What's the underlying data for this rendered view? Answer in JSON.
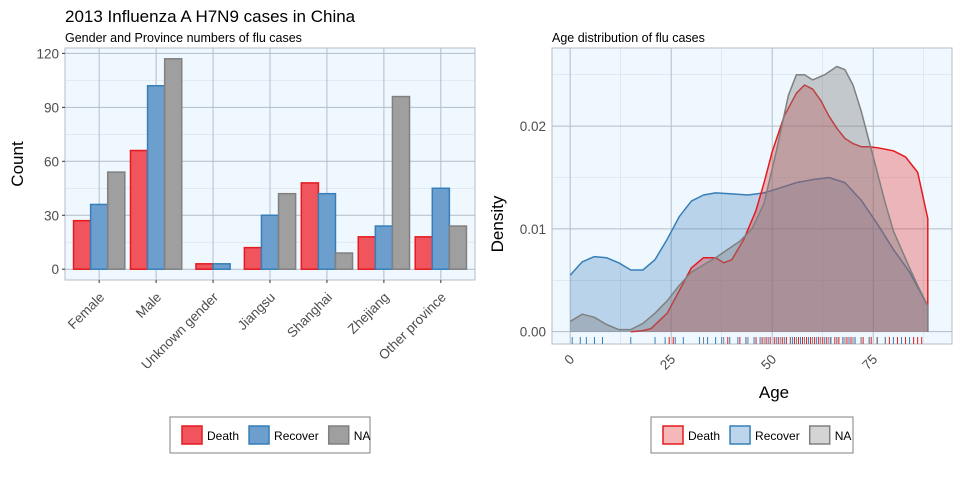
{
  "title": "2013 Influenza A H7N9 cases in China",
  "chart_data": [
    {
      "type": "bar",
      "subtitle": "Gender and Province numbers of flu cases",
      "xlabel": "",
      "ylabel": "Count",
      "ylim": [
        -6,
        123
      ],
      "yticks": [
        0,
        30,
        60,
        90,
        120
      ],
      "categories": [
        "Female",
        "Male",
        "Unknown gender",
        "Jiangsu",
        "Shanghai",
        "Zhejiang",
        "Other province"
      ],
      "series": [
        {
          "name": "Death",
          "values": [
            27,
            66,
            3,
            12,
            48,
            18,
            18
          ]
        },
        {
          "name": "Recover",
          "values": [
            36,
            102,
            3,
            30,
            42,
            24,
            45
          ]
        },
        {
          "name": "NA",
          "values": [
            54,
            117,
            null,
            42,
            9,
            96,
            24
          ]
        }
      ],
      "grid": true,
      "legend": "bottom",
      "colors": {
        "Death": "#f0545c",
        "Recover": "#6c9fce",
        "NA": "#9f9f9f",
        "Death_outline": "#e41a1c",
        "Recover_outline": "#377eb8",
        "NA_outline": "#808080"
      }
    },
    {
      "type": "area",
      "subtitle": "Age distribution of flu cases",
      "xlabel": "Age",
      "ylabel": "Density",
      "xlim": [
        -4.5,
        94.5
      ],
      "ylim": [
        -0.0012,
        0.0276
      ],
      "xticks": [
        0,
        25,
        50,
        75
      ],
      "yticks": [
        0.0,
        0.01,
        0.02
      ],
      "ytick_labels": [
        "0.00",
        "0.01",
        "0.02"
      ],
      "series": [
        {
          "name": "Death",
          "x": [
            15,
            18,
            20,
            24,
            27,
            30,
            33,
            36,
            38,
            40,
            43,
            46,
            48,
            50,
            53,
            56,
            58,
            60,
            62,
            64,
            66,
            68,
            70,
            72,
            74,
            76,
            80,
            83,
            86,
            88.5
          ],
          "y": [
            0.0,
            0.0001,
            0.0003,
            0.0018,
            0.004,
            0.0062,
            0.0072,
            0.0072,
            0.0067,
            0.007,
            0.009,
            0.0118,
            0.0145,
            0.0175,
            0.021,
            0.0232,
            0.024,
            0.0236,
            0.0225,
            0.021,
            0.0198,
            0.0188,
            0.0183,
            0.018,
            0.018,
            0.0179,
            0.0176,
            0.017,
            0.0155,
            0.011
          ]
        },
        {
          "name": "Recover",
          "x": [
            0,
            3,
            6,
            9,
            12,
            15,
            18,
            21,
            24,
            27,
            30,
            33,
            36,
            40,
            44,
            48,
            52,
            56,
            60,
            64,
            68,
            72,
            76,
            80,
            84,
            88.5
          ],
          "y": [
            0.0055,
            0.0068,
            0.0073,
            0.0072,
            0.0067,
            0.006,
            0.006,
            0.007,
            0.009,
            0.0112,
            0.0127,
            0.0133,
            0.0135,
            0.0134,
            0.0133,
            0.0135,
            0.014,
            0.0145,
            0.0148,
            0.015,
            0.0145,
            0.0128,
            0.0105,
            0.008,
            0.0058,
            0.0025
          ]
        },
        {
          "name": "NA",
          "x": [
            0,
            3,
            6,
            9,
            12,
            15,
            18,
            21,
            24,
            27,
            30,
            33,
            36,
            39,
            42,
            45,
            48,
            51,
            54,
            56,
            58,
            60,
            63,
            66,
            68,
            70,
            72,
            74,
            76,
            78,
            80,
            82,
            84,
            86,
            88.5
          ],
          "y": [
            0.001,
            0.0017,
            0.0014,
            0.0007,
            0.0002,
            0.0002,
            0.0008,
            0.0018,
            0.003,
            0.0045,
            0.0058,
            0.0065,
            0.0072,
            0.008,
            0.0088,
            0.01,
            0.0125,
            0.0175,
            0.023,
            0.025,
            0.025,
            0.0245,
            0.025,
            0.0258,
            0.0255,
            0.024,
            0.0215,
            0.0185,
            0.0155,
            0.0125,
            0.0098,
            0.008,
            0.0062,
            0.0045,
            0.0025
          ]
        }
      ],
      "rug": {
        "Death": [
          24.5,
          25.5,
          39,
          42,
          43.5,
          46,
          47.5,
          48.5,
          49.5,
          50.5,
          51.5,
          52.5,
          53.5,
          54.5,
          55.5,
          56.5,
          57.5,
          58.5,
          59.5,
          60.5,
          61.5,
          62.5,
          63.5,
          64.5,
          65.5,
          66.5,
          67.5,
          68.5,
          69.5,
          70.5,
          72.5,
          74.5,
          76,
          79,
          81,
          83,
          85,
          86,
          87
        ],
        "Recover": [
          0.5,
          2.5,
          4,
          6,
          8,
          15,
          21,
          23.5,
          26,
          28,
          32,
          34,
          36,
          37.5,
          39.5,
          41.5,
          43.5,
          45.5,
          47,
          49,
          51,
          53,
          55,
          57,
          59,
          61,
          63,
          64.5,
          66,
          67.5,
          69,
          70.5,
          72,
          74,
          76,
          78,
          80,
          82,
          84
        ],
        "NA": [
          33,
          38,
          44,
          48,
          52,
          54.5,
          56,
          58,
          60,
          62,
          64,
          66,
          68,
          70,
          72,
          74,
          76,
          78
        ]
      },
      "grid": true,
      "legend": "bottom",
      "colors": {
        "Death": "#e41a1c",
        "Recover": "#377eb8",
        "NA": "#808080"
      }
    }
  ],
  "legends": {
    "left": [
      "Death",
      "Recover",
      "NA"
    ],
    "right": [
      "Death",
      "Recover",
      "NA"
    ]
  }
}
